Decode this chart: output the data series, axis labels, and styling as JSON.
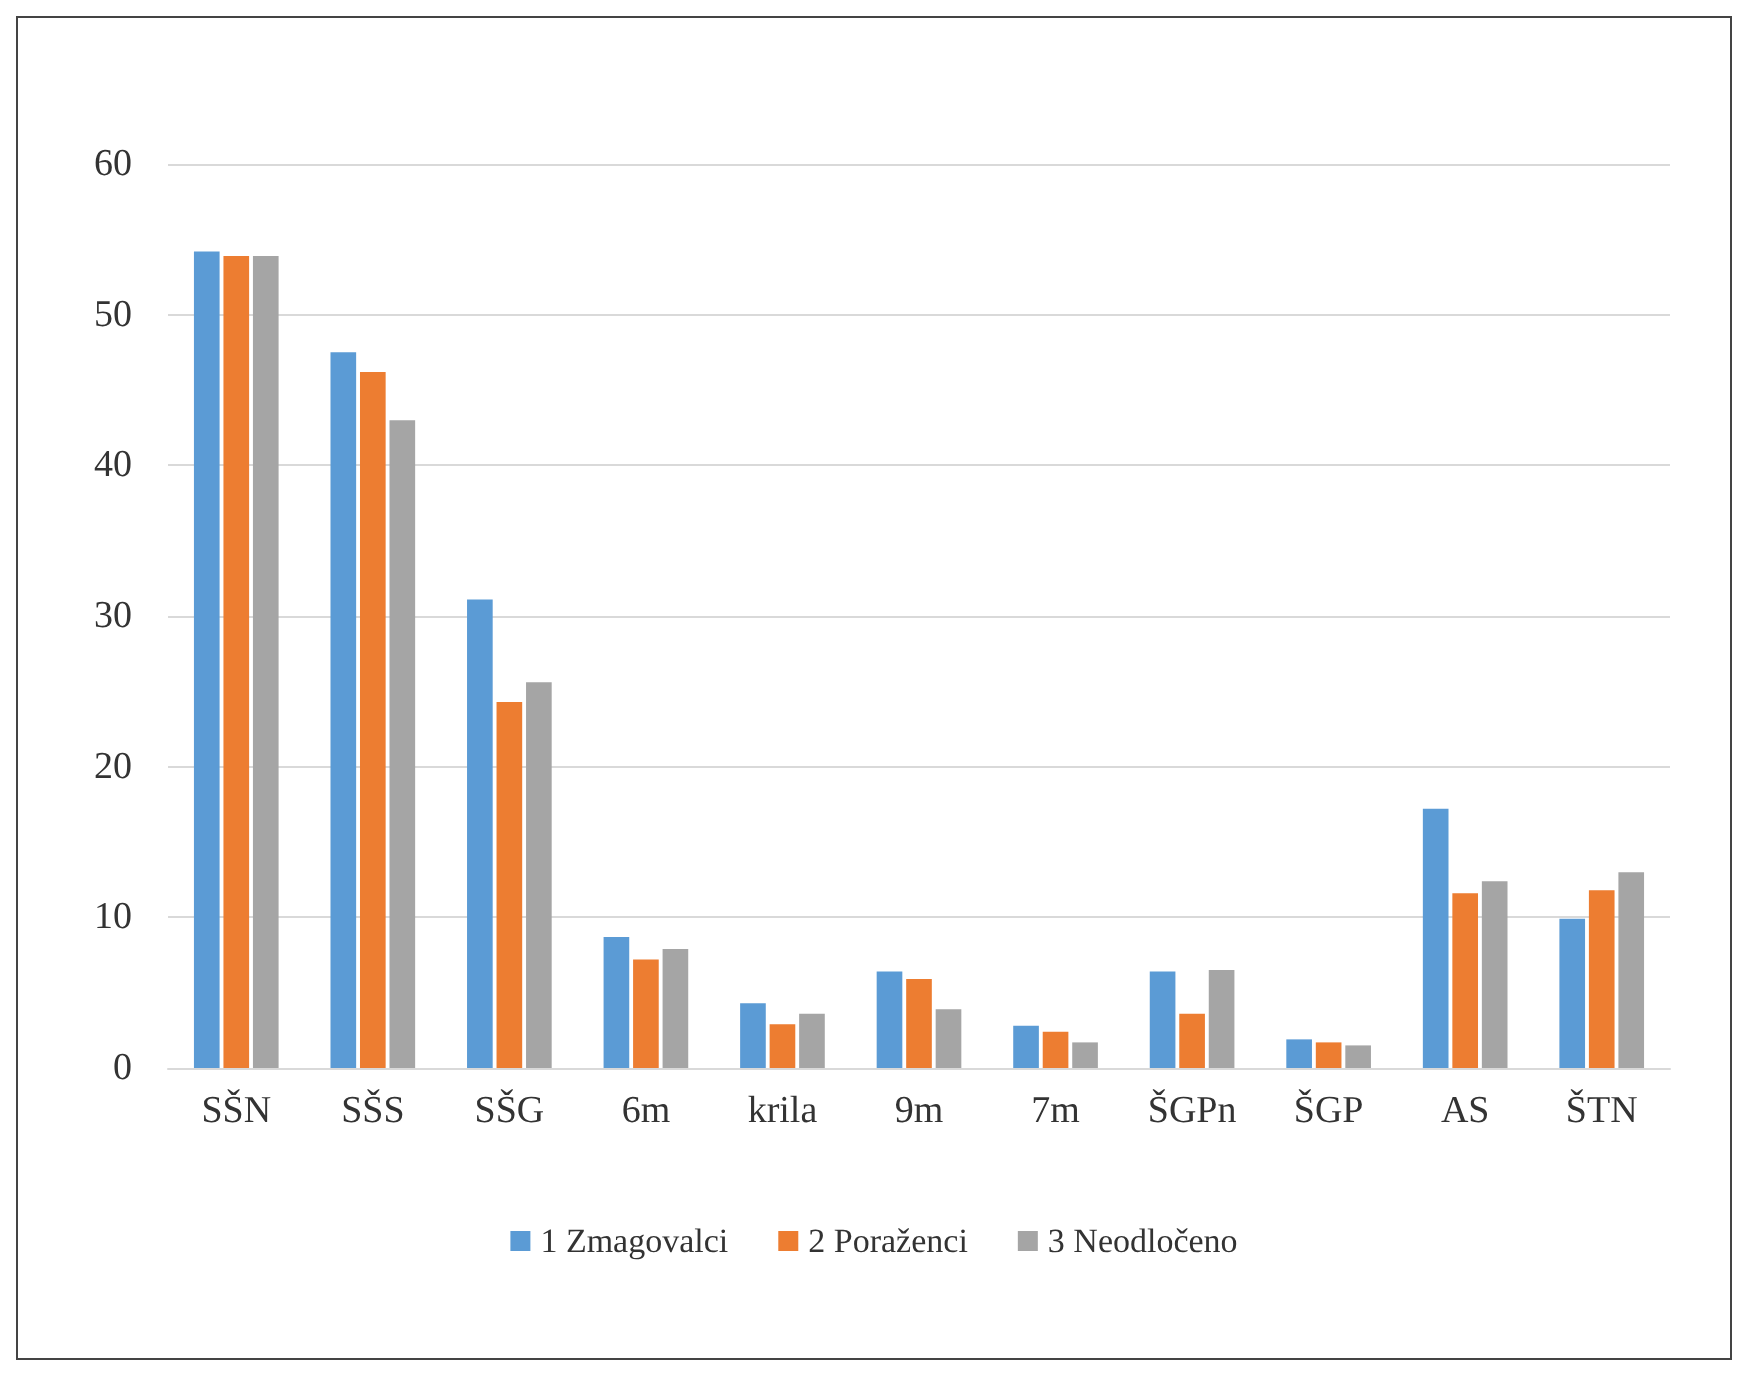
{
  "chart_data": {
    "type": "bar",
    "categories": [
      "SŠN",
      "SŠS",
      "SŠG",
      "6m",
      "krila",
      "9m",
      "7m",
      "ŠGPn",
      "ŠGP",
      "AS",
      "ŠTN"
    ],
    "series": [
      {
        "name": "1 Zmagovalci",
        "color": "#5b9bd5",
        "values": [
          54.2,
          47.5,
          31.1,
          8.7,
          4.3,
          6.4,
          2.8,
          6.4,
          1.9,
          17.2,
          9.9
        ]
      },
      {
        "name": "2 Poraženci",
        "color": "#ed7d31",
        "values": [
          53.9,
          46.2,
          24.3,
          7.2,
          2.9,
          5.9,
          2.4,
          3.6,
          1.7,
          11.6,
          11.8
        ]
      },
      {
        "name": "3 Neodločeno",
        "color": "#a5a5a5",
        "values": [
          53.9,
          43.0,
          25.6,
          7.9,
          3.6,
          3.9,
          1.7,
          6.5,
          1.5,
          12.4,
          13.0
        ]
      }
    ],
    "ylim": [
      0,
      60
    ],
    "yticks": [
      0,
      10,
      20,
      30,
      40,
      50,
      60
    ],
    "grid": "y",
    "legend": "bottom"
  }
}
